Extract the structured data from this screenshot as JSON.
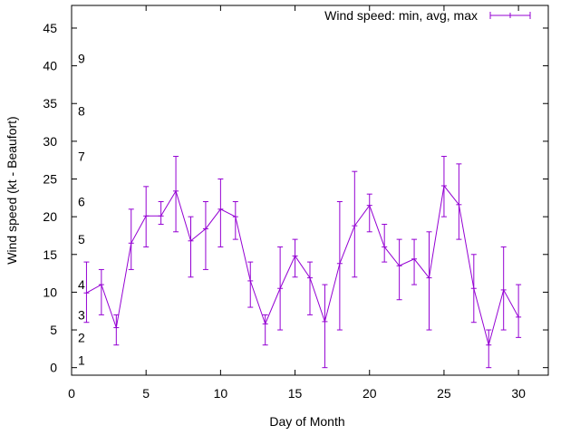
{
  "chart_data": {
    "type": "line",
    "title": "",
    "xlabel": "Day of Month",
    "ylabel": "Wind speed (kt - Beaufort)",
    "xlim": [
      0,
      32
    ],
    "ylim": [
      -1,
      48
    ],
    "xticks": [
      0,
      5,
      10,
      15,
      20,
      25,
      30
    ],
    "yticks": [
      0,
      5,
      10,
      15,
      20,
      25,
      30,
      35,
      40,
      45
    ],
    "beaufort_labels": [
      {
        "label": "1",
        "y": 1
      },
      {
        "label": "2",
        "y": 4
      },
      {
        "label": "3",
        "y": 7
      },
      {
        "label": "4",
        "y": 11
      },
      {
        "label": "5",
        "y": 17
      },
      {
        "label": "6",
        "y": 22
      },
      {
        "label": "7",
        "y": 28
      },
      {
        "label": "8",
        "y": 34
      },
      {
        "label": "9",
        "y": 41
      }
    ],
    "legend": {
      "position": "top-right",
      "label": "Wind speed: min, avg, max"
    },
    "grid": false,
    "color": "#9400d3",
    "series": [
      {
        "name": "Wind speed: min, avg, max",
        "x": [
          1,
          2,
          3,
          4,
          5,
          6,
          7,
          8,
          9,
          10,
          11,
          12,
          13,
          14,
          15,
          16,
          17,
          18,
          19,
          20,
          21,
          22,
          23,
          24,
          25,
          26,
          27,
          28,
          29,
          30
        ],
        "avg": [
          9.9,
          11,
          5.3,
          16.5,
          20.1,
          20.1,
          23.4,
          16.8,
          18.4,
          21,
          20,
          11.5,
          5.8,
          10.5,
          14.8,
          11.9,
          6.1,
          13.8,
          18.8,
          21.5,
          16,
          13.5,
          14.4,
          11.9,
          24.1,
          21.6,
          10.5,
          3,
          10.3,
          6.7
        ],
        "min": [
          6,
          7,
          3,
          13,
          16,
          19,
          18,
          12,
          13,
          16,
          17,
          8,
          3,
          5,
          12,
          7,
          0,
          5,
          12,
          18,
          14,
          9,
          11,
          5,
          20,
          17,
          6,
          0,
          5,
          4
        ],
        "max": [
          14,
          13,
          7,
          21,
          24,
          22,
          28,
          20,
          22,
          25,
          22,
          14,
          7,
          16,
          17,
          14,
          11,
          22,
          26,
          23,
          19,
          17,
          17,
          18,
          28,
          27,
          15,
          5,
          16,
          11
        ]
      }
    ]
  }
}
